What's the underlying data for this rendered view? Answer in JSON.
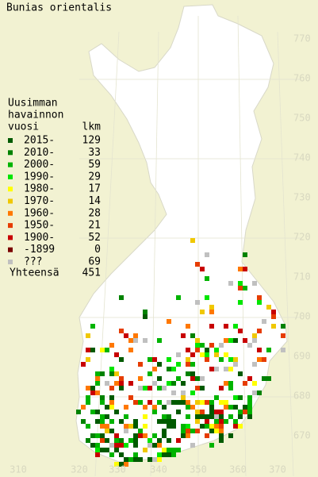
{
  "title": "Bunias orientalis",
  "legend": {
    "heading": [
      "Uusimman",
      "havainnon"
    ],
    "column_titles": [
      "vuosi",
      "lkm"
    ],
    "rows": [
      {
        "label": "2015-",
        "count": 129,
        "color": "#005a00"
      },
      {
        "label": "2010-",
        "count": 33,
        "color": "#008200"
      },
      {
        "label": "2000-",
        "count": 59,
        "color": "#00b400"
      },
      {
        "label": "1990-",
        "count": 29,
        "color": "#00e600"
      },
      {
        "label": "1980-",
        "count": 17,
        "color": "#ffff00"
      },
      {
        "label": "1970-",
        "count": 14,
        "color": "#f0c800"
      },
      {
        "label": "1960-",
        "count": 28,
        "color": "#ff7800"
      },
      {
        "label": "1950-",
        "count": 21,
        "color": "#e63c00"
      },
      {
        "label": "1900-",
        "count": 52,
        "color": "#c80000"
      },
      {
        "label": "-1899",
        "count": 0,
        "color": "#7a0000"
      },
      {
        "label": "???",
        "count": 69,
        "color": "#c0c0c0"
      }
    ],
    "total_label": "Yhteensä",
    "total": 451
  },
  "grid": {
    "y_labels": [
      770,
      760,
      750,
      740,
      730,
      720,
      710,
      700,
      690,
      680,
      670
    ],
    "x_labels": [
      310,
      320,
      330,
      340,
      350,
      360,
      370
    ]
  }
}
